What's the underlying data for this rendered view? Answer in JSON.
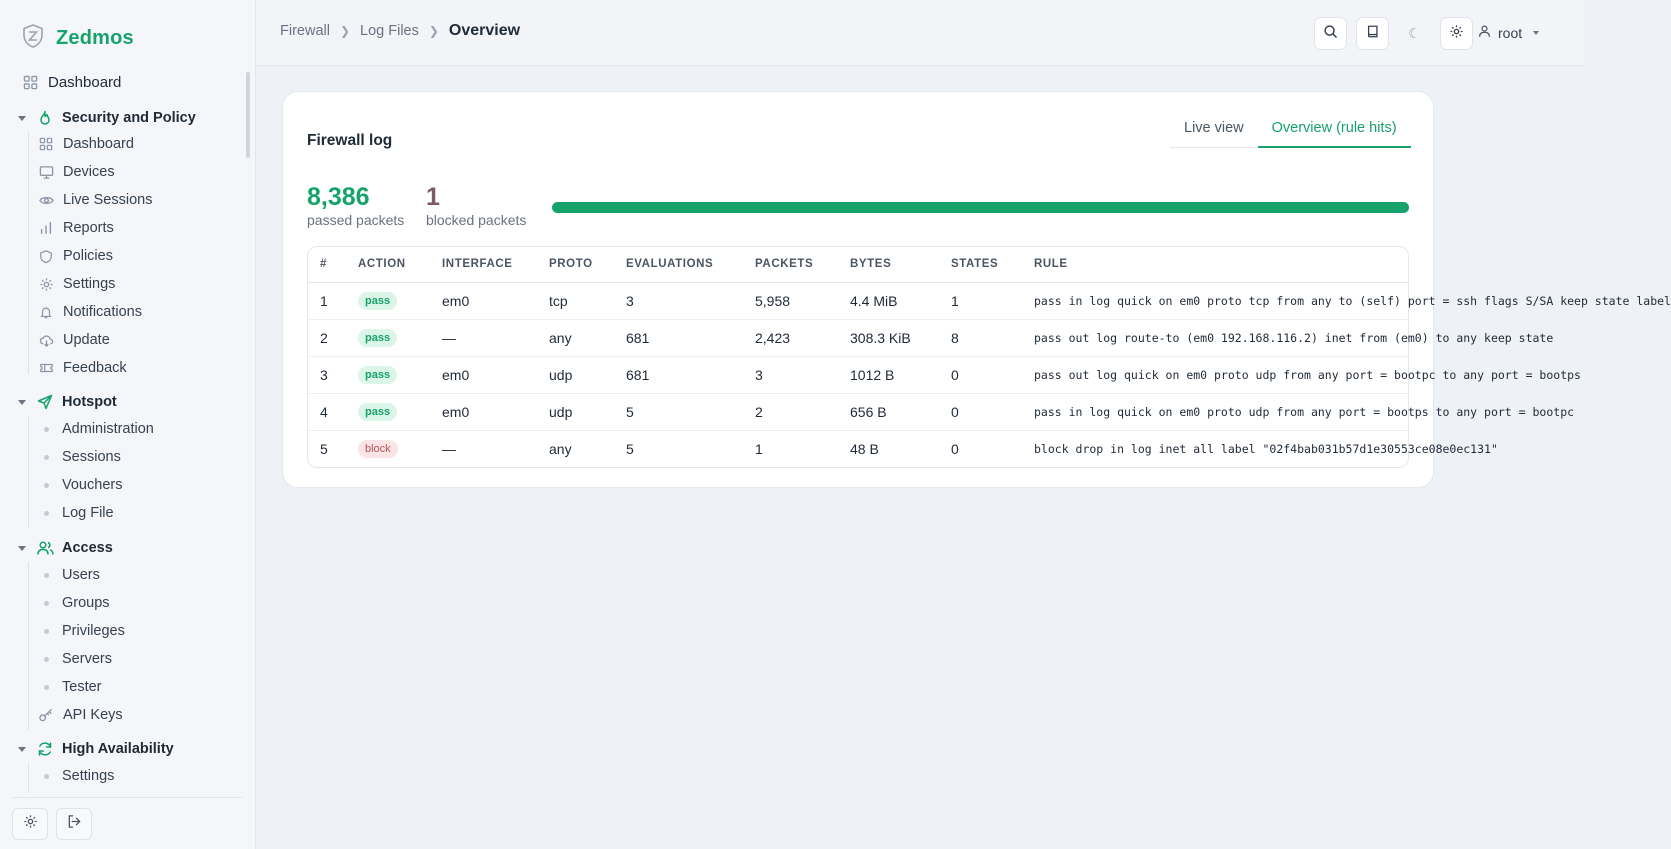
{
  "app": {
    "name": "Zedmos"
  },
  "sidebar": {
    "top_item": {
      "label": "Dashboard",
      "icon": "grid-icon"
    },
    "sections": [
      {
        "label": "Security and Policy",
        "icon": "flame-icon",
        "items": [
          {
            "label": "Dashboard",
            "icon": "grid-icon"
          },
          {
            "label": "Devices",
            "icon": "monitor-icon"
          },
          {
            "label": "Live Sessions",
            "icon": "eye-icon"
          },
          {
            "label": "Reports",
            "icon": "bar-chart-icon"
          },
          {
            "label": "Policies",
            "icon": "shield-icon"
          },
          {
            "label": "Settings",
            "icon": "gear-icon"
          },
          {
            "label": "Notifications",
            "icon": "bell-icon"
          },
          {
            "label": "Update",
            "icon": "cloud-download-icon"
          },
          {
            "label": "Feedback",
            "icon": "ticket-icon"
          }
        ]
      },
      {
        "label": "Hotspot",
        "icon": "send-icon",
        "items": [
          {
            "label": "Administration"
          },
          {
            "label": "Sessions"
          },
          {
            "label": "Vouchers"
          },
          {
            "label": "Log File"
          }
        ]
      },
      {
        "label": "Access",
        "icon": "users-icon",
        "items": [
          {
            "label": "Users"
          },
          {
            "label": "Groups"
          },
          {
            "label": "Privileges"
          },
          {
            "label": "Servers"
          },
          {
            "label": "Tester"
          },
          {
            "label": "API Keys",
            "icon": "key-icon"
          }
        ]
      },
      {
        "label": "High Availability",
        "icon": "refresh-icon",
        "items": [
          {
            "label": "Settings"
          }
        ]
      }
    ]
  },
  "breadcrumb": [
    "Firewall",
    "Log Files",
    "Overview"
  ],
  "header": {
    "user": "root"
  },
  "card": {
    "title": "Firewall log",
    "tabs": [
      {
        "label": "Live view"
      },
      {
        "label": "Overview (rule hits)"
      }
    ],
    "passed": {
      "value": "8,386",
      "label": "passed packets"
    },
    "blocked": {
      "value": "1",
      "label": "blocked packets"
    },
    "pass_ratio": 0.9999
  },
  "table": {
    "columns": [
      "#",
      "ACTION",
      "INTERFACE",
      "PROTO",
      "EVALUATIONS",
      "PACKETS",
      "BYTES",
      "STATES",
      "RULE"
    ],
    "rows": [
      [
        "1",
        "pass",
        "em0",
        "tcp",
        "3",
        "5,958",
        "4.4 MiB",
        "1",
        "pass in log quick on em0 proto tcp from any to (self) port = ssh flags S/SA keep state label"
      ],
      [
        "2",
        "pass",
        "—",
        "any",
        "681",
        "2,423",
        "308.3 KiB",
        "8",
        "pass out log route-to (em0 192.168.116.2) inet from (em0) to any keep state"
      ],
      [
        "3",
        "pass",
        "em0",
        "udp",
        "681",
        "3",
        "1012 B",
        "0",
        "pass out log quick on em0 proto udp from any port = bootpc to any port = bootps"
      ],
      [
        "4",
        "pass",
        "em0",
        "udp",
        "5",
        "2",
        "656 B",
        "0",
        "pass in log quick on em0 proto udp from any port = bootps to any port = bootpc"
      ],
      [
        "5",
        "block",
        "—",
        "any",
        "5",
        "1",
        "48 B",
        "0",
        "block drop in log inet all label \"02f4bab031b57d1e30553ce08e0ec131\""
      ]
    ]
  },
  "colors": {
    "accent": "#16a36b",
    "blocked": "#7d5a66"
  }
}
